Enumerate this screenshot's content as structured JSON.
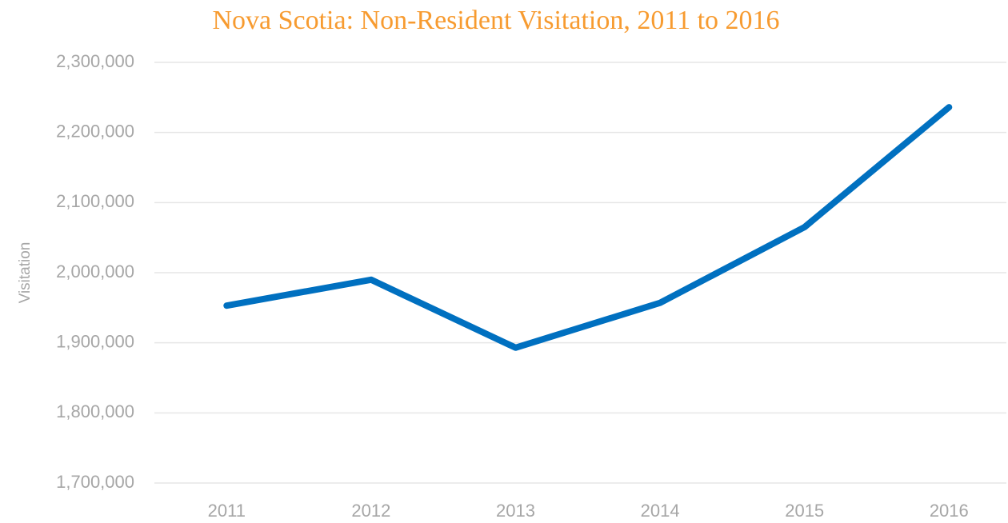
{
  "chart_data": {
    "type": "line",
    "title": "Nova Scotia: Non-Resident Visitation, 2011 to 2016",
    "y_label": "Visitation",
    "categories": [
      "2011",
      "2012",
      "2013",
      "2014",
      "2015",
      "2016"
    ],
    "series": [
      {
        "name": "Visitation",
        "color": "#0070c0",
        "values": [
          1953000,
          1990000,
          1893000,
          1957000,
          2065000,
          2236000
        ]
      }
    ],
    "ylim": [
      1700000,
      2300000
    ],
    "yticks": [
      {
        "value": 1700000,
        "label": "1,700,000"
      },
      {
        "value": 1800000,
        "label": "1,800,000"
      },
      {
        "value": 1900000,
        "label": "1,900,000"
      },
      {
        "value": 2000000,
        "label": "2,000,000"
      },
      {
        "value": 2100000,
        "label": "2,100,000"
      },
      {
        "value": 2200000,
        "label": "2,200,000"
      },
      {
        "value": 2300000,
        "label": "2,300,000"
      }
    ],
    "grid": true,
    "legend": false
  }
}
